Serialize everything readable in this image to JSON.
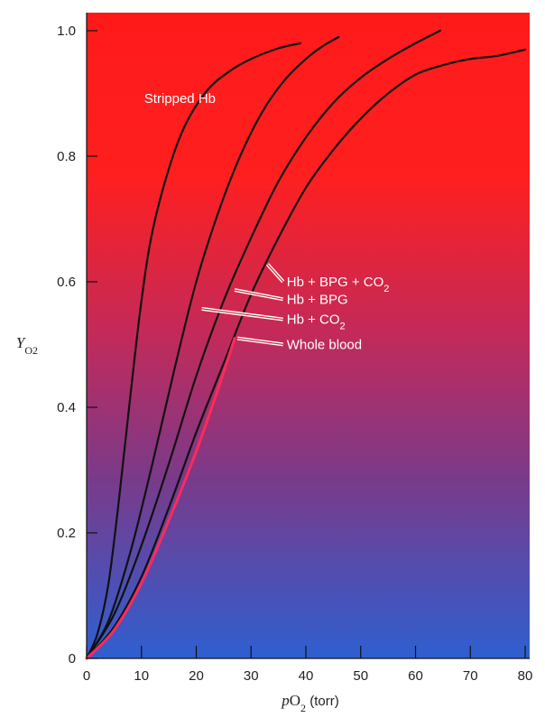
{
  "chart_data": {
    "type": "line",
    "title": "",
    "xlabel": {
      "italic": "p",
      "base": "O",
      "sub": "2",
      "rest": " (torr)"
    },
    "ylabel": {
      "italic": "Y",
      "sub": "O2"
    },
    "xlim": [
      0,
      80
    ],
    "ylim": [
      0,
      1.02
    ],
    "xticks": [
      "0",
      "10",
      "20",
      "30",
      "40",
      "50",
      "60",
      "70",
      "80"
    ],
    "yticks": [
      "0",
      "0.2",
      "0.4",
      "0.6",
      "0.8",
      "1.0"
    ],
    "grid": false,
    "background": {
      "top": "#ff1a1a",
      "bottom": "#2f5fd0"
    },
    "series": [
      {
        "name": "Stripped Hb",
        "color": "#111111",
        "points": [
          [
            0,
            0
          ],
          [
            2,
            0.04
          ],
          [
            4,
            0.12
          ],
          [
            6,
            0.26
          ],
          [
            8,
            0.42
          ],
          [
            10,
            0.57
          ],
          [
            12,
            0.68
          ],
          [
            15,
            0.78
          ],
          [
            18,
            0.85
          ],
          [
            22,
            0.905
          ],
          [
            26,
            0.935
          ],
          [
            30,
            0.955
          ],
          [
            35,
            0.972
          ],
          [
            39,
            0.98
          ]
        ]
      },
      {
        "name": "Hb + BPG",
        "color": "#111111",
        "points": [
          [
            0,
            0
          ],
          [
            4,
            0.06
          ],
          [
            8,
            0.17
          ],
          [
            12,
            0.31
          ],
          [
            16,
            0.46
          ],
          [
            20,
            0.6
          ],
          [
            24,
            0.71
          ],
          [
            28,
            0.8
          ],
          [
            32,
            0.87
          ],
          [
            36,
            0.92
          ],
          [
            40,
            0.955
          ],
          [
            43,
            0.975
          ],
          [
            46,
            0.99
          ]
        ]
      },
      {
        "name": "Hb + CO2",
        "color": "#111111",
        "points": [
          [
            0,
            0
          ],
          [
            5,
            0.07
          ],
          [
            10,
            0.18
          ],
          [
            15,
            0.31
          ],
          [
            20,
            0.45
          ],
          [
            25,
            0.57
          ],
          [
            30,
            0.67
          ],
          [
            35,
            0.76
          ],
          [
            40,
            0.83
          ],
          [
            45,
            0.885
          ],
          [
            50,
            0.925
          ],
          [
            55,
            0.955
          ],
          [
            60,
            0.98
          ],
          [
            64.5,
            1.0
          ]
        ]
      },
      {
        "name": "Hb + BPG + CO2",
        "color": "#111111",
        "points": [
          [
            0,
            0
          ],
          [
            5,
            0.05
          ],
          [
            10,
            0.13
          ],
          [
            15,
            0.24
          ],
          [
            20,
            0.36
          ],
          [
            25,
            0.47
          ],
          [
            30,
            0.58
          ],
          [
            35,
            0.67
          ],
          [
            40,
            0.75
          ],
          [
            45,
            0.81
          ],
          [
            50,
            0.86
          ],
          [
            55,
            0.9
          ],
          [
            60,
            0.93
          ],
          [
            65,
            0.945
          ],
          [
            70,
            0.955
          ],
          [
            75,
            0.96
          ],
          [
            80,
            0.97
          ]
        ]
      },
      {
        "name": "Whole blood",
        "color": "#ff2a5a",
        "points": [
          [
            0,
            0
          ],
          [
            5,
            0.045
          ],
          [
            10,
            0.12
          ],
          [
            15,
            0.22
          ],
          [
            20,
            0.33
          ],
          [
            24,
            0.43
          ],
          [
            27,
            0.51
          ]
        ]
      }
    ],
    "labels": [
      {
        "series": "Stripped Hb",
        "text": "Stripped Hb",
        "sub": "",
        "x": 10.5,
        "y": 0.885,
        "leader": false
      },
      {
        "series": "Hb + BPG + CO2",
        "text": "Hb + BPG + CO",
        "sub": "2",
        "x": 36.5,
        "y": 0.593,
        "leader": true,
        "tx": 33,
        "ty": 0.628
      },
      {
        "series": "Hb + BPG",
        "text": "Hb + BPG",
        "sub": "",
        "x": 36.5,
        "y": 0.565,
        "leader": true,
        "tx": 27,
        "ty": 0.587
      },
      {
        "series": "Hb + CO2",
        "text": "Hb + CO",
        "sub": "2",
        "x": 36.5,
        "y": 0.533,
        "leader": true,
        "tx": 21,
        "ty": 0.557
      },
      {
        "series": "Whole blood",
        "text": "Whole blood",
        "sub": "",
        "x": 36.5,
        "y": 0.493,
        "leader": true,
        "tx": 27.5,
        "ty": 0.51
      }
    ]
  }
}
